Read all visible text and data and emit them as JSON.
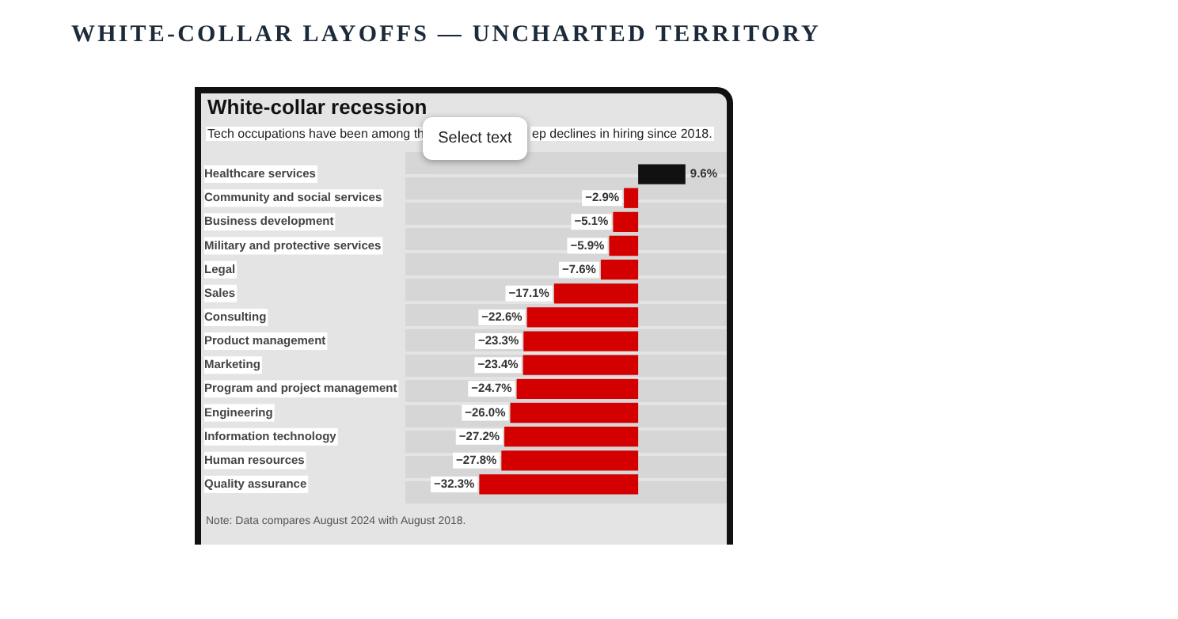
{
  "chart_data": {
    "type": "bar",
    "orientation": "horizontal",
    "title": "WHITE-COLLAR LAYOFFS — UNCHARTED TERRITORY",
    "subtitle": "White-collar recession",
    "categories": [
      "Healthcare services",
      "Community and social services",
      "Business development",
      "Military and protective services",
      "Legal",
      "Sales",
      "Consulting",
      "Product management",
      "Marketing",
      "Program and project management",
      "Engineering",
      "Information technology",
      "Human resources",
      "Quality assurance"
    ],
    "values": [
      9.6,
      -2.9,
      -5.1,
      -5.9,
      -7.6,
      -17.1,
      -22.6,
      -23.3,
      -23.4,
      -24.7,
      -26.0,
      -27.2,
      -27.8,
      -32.3
    ],
    "value_labels": [
      "9.6%",
      "−2.9%",
      "−5.1%",
      "−5.9%",
      "−7.6%",
      "−17.1%",
      "−22.6%",
      "−23.3%",
      "−23.4%",
      "−24.7%",
      "−26.0%",
      "−27.2%",
      "−27.8%",
      "−32.3%"
    ],
    "colors": [
      "#111111",
      "#d40000",
      "#d40000",
      "#d40000",
      "#d40000",
      "#d40000",
      "#d40000",
      "#d40000",
      "#d40000",
      "#d40000",
      "#d40000",
      "#d40000",
      "#d40000",
      "#d40000"
    ],
    "xlim": [
      -47,
      18
    ],
    "tick_labels": "y",
    "annotations": [
      "Tech occupations have been among th",
      "ep declines in hiring since 2018.",
      "Note: Data compares August 2024 with August 2018.",
      "Select text"
    ]
  }
}
